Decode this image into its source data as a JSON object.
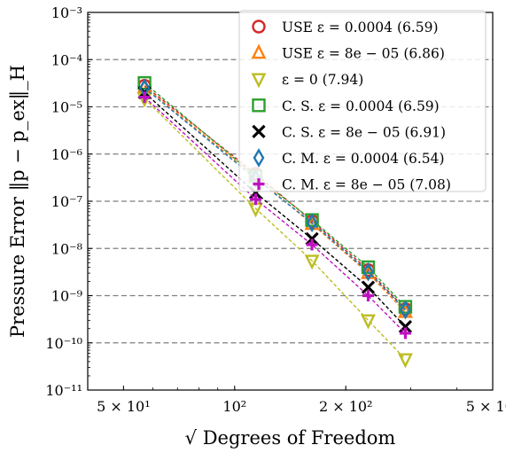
{
  "chart_data": {
    "type": "scatter",
    "xlabel": "√ Degrees of Freedom",
    "ylabel": "Pressure Error ‖p − p_ex‖_H",
    "xscale": "log",
    "yscale": "log",
    "xlim": [
      40,
      500
    ],
    "ylim": [
      1e-11,
      0.001
    ],
    "grid": "horizontal dashed",
    "legend_position": "top-right",
    "x_ticks": [
      {
        "value": 50,
        "label": "5 × 10¹"
      },
      {
        "value": 100,
        "label": "10²"
      },
      {
        "value": 200,
        "label": "2 × 10²"
      },
      {
        "value": 500,
        "label": "5 × 10²"
      }
    ],
    "y_ticks": [
      {
        "value": 1e-11,
        "label": "10⁻¹¹"
      },
      {
        "value": 1e-10,
        "label": "10⁻¹⁰"
      },
      {
        "value": 1e-09,
        "label": "10⁻⁹"
      },
      {
        "value": 1e-08,
        "label": "10⁻⁸"
      },
      {
        "value": 1e-07,
        "label": "10⁻⁷"
      },
      {
        "value": 1e-06,
        "label": "10⁻⁶"
      },
      {
        "value": 1e-05,
        "label": "10⁻⁵"
      },
      {
        "value": 0.0001,
        "label": "10⁻⁴"
      },
      {
        "value": 0.001,
        "label": "10⁻³"
      }
    ],
    "x": [
      57,
      114,
      162,
      230,
      290
    ],
    "series": [
      {
        "name": "USE ε = 0.0004 (6.59)",
        "marker": "circle",
        "color": "#d62728",
        "values": [
          2.8e-05,
          3.8e-07,
          3.8e-08,
          3.5e-09,
          5.2e-10
        ]
      },
      {
        "name": "USE ε = 8e − 05 (6.86)",
        "marker": "triangle-up",
        "color": "#ff7f0e",
        "values": [
          2.6e-05,
          3.3e-07,
          3.3e-08,
          3e-09,
          4.5e-10
        ]
      },
      {
        "name": "ε = 0 (7.94)",
        "marker": "triangle-down",
        "color": "#bcbd22",
        "values": [
          1.5e-05,
          7e-08,
          5.5e-09,
          3e-10,
          4.5e-11
        ]
      },
      {
        "name": "C. S. ε = 0.0004 (6.59)",
        "marker": "square",
        "color": "#2ca02c",
        "values": [
          3.2e-05,
          3.4e-07,
          4e-08,
          4e-09,
          5.8e-10
        ]
      },
      {
        "name": "C. S. ε = 8e − 05 (6.91)",
        "marker": "x",
        "color": "#000000",
        "values": [
          2e-05,
          1.5e-07,
          1.6e-08,
          1.5e-09,
          2.2e-10
        ]
      },
      {
        "name": "C. M. ε = 0.0004 (6.54)",
        "marker": "diamond",
        "color": "#1f77b4",
        "values": [
          2.5e-05,
          3e-07,
          3.5e-08,
          3.2e-09,
          5e-10
        ]
      },
      {
        "name": "C. M. ε = 8e − 05 (7.08)",
        "marker": "plus",
        "color": "#c011c0",
        "values": [
          1.6e-05,
          1.1e-07,
          1.2e-08,
          1e-09,
          1.6e-10
        ]
      }
    ]
  }
}
